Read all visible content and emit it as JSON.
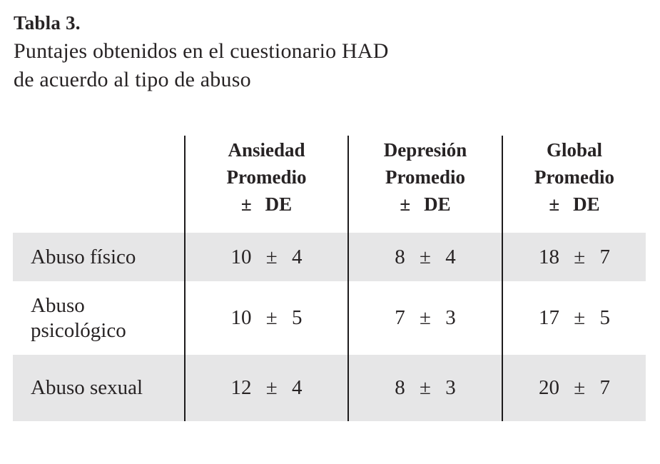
{
  "caption": {
    "number": "Tabla 3.",
    "line1": "Puntajes obtenidos en el cuestionario HAD",
    "line2": "de acuerdo al tipo de abuso"
  },
  "table": {
    "headers": [
      {
        "line1": "Ansiedad",
        "line2": "Promedio",
        "line3": "± DE"
      },
      {
        "line1": "Depresión",
        "line2": "Promedio",
        "line3": "± DE"
      },
      {
        "line1": "Global",
        "line2": "Promedio",
        "line3": "± DE"
      }
    ],
    "rows": [
      {
        "label": "Abuso físico",
        "values": [
          "10 ± 4",
          "8 ± 4",
          "18 ± 7"
        ],
        "shaded": true
      },
      {
        "label": "Abuso psicológico",
        "values": [
          "10 ± 5",
          "7 ± 3",
          "17 ± 5"
        ],
        "shaded": false
      },
      {
        "label": "Abuso sexual",
        "values": [
          "12 ± 4",
          "8 ± 3",
          "20 ± 7"
        ],
        "shaded": true
      }
    ]
  },
  "colors": {
    "background": "#ffffff",
    "row_shade": "#e6e6e7",
    "text": "#272324",
    "divider": "#1d1b1c"
  }
}
